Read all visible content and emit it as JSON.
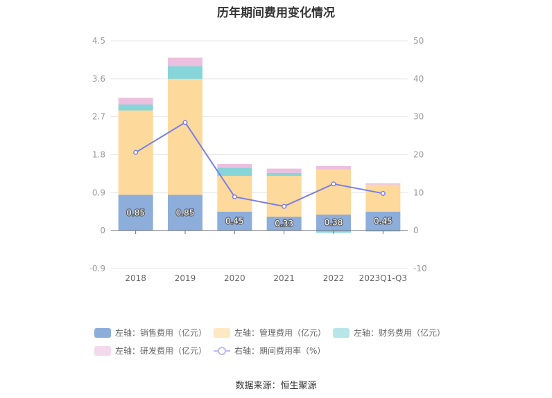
{
  "title": "历年期间费用变化情况",
  "source": "数据来源：恒生聚源",
  "chart_data": {
    "type": "bar",
    "stacked": true,
    "categories": [
      "2018",
      "2019",
      "2020",
      "2021",
      "2022",
      "2023Q1-Q3"
    ],
    "left_axis": {
      "ticks": [
        "-0.9",
        "0",
        "0.9",
        "1.8",
        "2.7",
        "3.6",
        "4.5"
      ],
      "range": [
        -0.9,
        4.5
      ]
    },
    "right_axis": {
      "ticks": [
        "-10",
        "0",
        "10",
        "20",
        "30",
        "40",
        "50"
      ],
      "range": [
        -10,
        50
      ]
    },
    "series": [
      {
        "name": "左轴：销售费用（亿元）",
        "axis": "left",
        "color": "#8daddb",
        "values": [
          0.85,
          0.85,
          0.45,
          0.33,
          0.38,
          0.45
        ],
        "labels": [
          "0.85",
          "0.85",
          "0.45",
          "0.33",
          "0.38",
          "0.45"
        ]
      },
      {
        "name": "左轴：管理费用（亿元）",
        "axis": "left",
        "color": "#fdd99b",
        "values": [
          2.0,
          2.75,
          0.85,
          0.97,
          1.07,
          0.64
        ]
      },
      {
        "name": "左轴：财务费用（亿元）",
        "axis": "left",
        "color": "#86d5d9",
        "values": [
          0.14,
          0.3,
          0.19,
          0.07,
          -0.05,
          -0.02
        ]
      },
      {
        "name": "左轴：研发费用（亿元）",
        "axis": "left",
        "color": "#ecbfdf",
        "values": [
          0.16,
          0.2,
          0.09,
          0.1,
          0.08,
          0.03
        ]
      },
      {
        "name": "右轴：期间费用率（%）",
        "axis": "right",
        "type": "line",
        "color": "#7b7fe8",
        "values": [
          20.6,
          28.5,
          8.9,
          6.4,
          12.3,
          9.8
        ]
      }
    ],
    "grid": true,
    "legend_position": "bottom"
  }
}
